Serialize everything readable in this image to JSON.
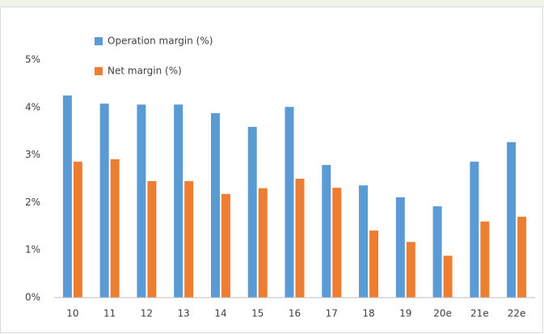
{
  "chart_data": {
    "type": "bar",
    "categories": [
      "10",
      "11",
      "12",
      "13",
      "14",
      "15",
      "16",
      "17",
      "18",
      "19",
      "20e",
      "21e",
      "22e"
    ],
    "series": [
      {
        "name": "Operation margin (%)",
        "color": "#5b9bd5",
        "values": [
          4.25,
          4.08,
          4.06,
          4.06,
          3.88,
          3.59,
          4.01,
          2.79,
          2.36,
          2.11,
          1.92,
          2.86,
          3.27
        ]
      },
      {
        "name": "Net margin (%)",
        "color": "#ed7d31",
        "values": [
          2.86,
          2.91,
          2.45,
          2.45,
          2.18,
          2.3,
          2.5,
          2.31,
          1.41,
          1.17,
          0.88,
          1.6,
          1.7
        ]
      }
    ],
    "ylim": [
      0,
      5
    ],
    "yticks": [
      {
        "value": 0,
        "label": "0%"
      },
      {
        "value": 1,
        "label": "1%"
      },
      {
        "value": 2,
        "label": "2%"
      },
      {
        "value": 3,
        "label": "3%"
      },
      {
        "value": 4,
        "label": "4%"
      },
      {
        "value": 5,
        "label": "5%"
      }
    ],
    "grid": false,
    "legend": "top-left"
  }
}
